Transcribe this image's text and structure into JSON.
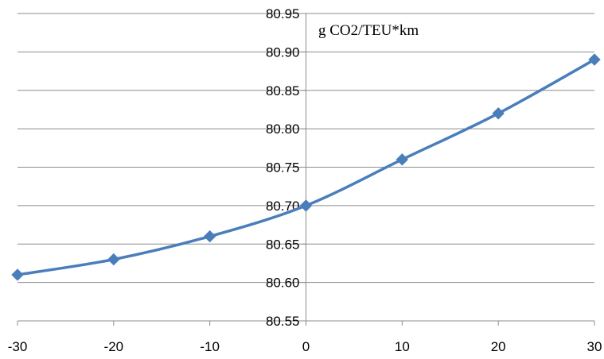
{
  "chart_data": {
    "type": "line",
    "title": "",
    "xlabel": "",
    "ylabel": "",
    "annotation": "g CO2/TEU*km",
    "x": [
      -30,
      -20,
      -10,
      0,
      10,
      20,
      30
    ],
    "series": [
      {
        "values": [
          80.61,
          80.63,
          80.66,
          80.7,
          80.76,
          80.82,
          80.89
        ],
        "color": "#4a7ebb",
        "marker": "diamond",
        "smooth": true
      }
    ],
    "xlim": [
      -30,
      30
    ],
    "ylim": [
      80.55,
      80.95
    ],
    "x_ticks": [
      "-30",
      "-20",
      "-10",
      "0",
      "10",
      "20",
      "30"
    ],
    "y_ticks": [
      "80.55",
      "80.60",
      "80.65",
      "80.70",
      "80.75",
      "80.80",
      "80.85",
      "80.90",
      "80.95"
    ],
    "grid": "horizontal",
    "legend": "none",
    "axis_crossing": "y-axis at x=0"
  }
}
